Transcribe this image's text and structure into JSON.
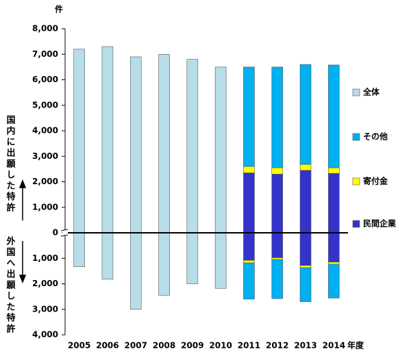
{
  "chart_data": {
    "type": "bar",
    "y_unit": "件",
    "x_unit": "年度",
    "domestic_label": "国内に出願した特許",
    "foreign_label": "外国へ出願した特許",
    "categories": [
      "2005",
      "2006",
      "2007",
      "2008",
      "2009",
      "2010",
      "2011",
      "2012",
      "2013",
      "2014"
    ],
    "series": [
      {
        "name": "全体",
        "color": "#b7dde8",
        "values": [
          7200,
          7300,
          6900,
          7000,
          6800,
          6500,
          null,
          null,
          null,
          null
        ],
        "values_out": [
          -1330,
          -1820,
          -3000,
          -2450,
          -2000,
          -2180,
          null,
          null,
          null,
          null
        ]
      },
      {
        "name": "その他",
        "color": "#00b0f0",
        "values": [
          null,
          null,
          null,
          null,
          null,
          null,
          3900,
          3950,
          3920,
          4030
        ],
        "values_out": [
          null,
          null,
          null,
          null,
          null,
          null,
          -1420,
          -1530,
          -1330,
          -1330
        ]
      },
      {
        "name": "寄付金",
        "color": "#ffff00",
        "values": [
          null,
          null,
          null,
          null,
          null,
          null,
          250,
          250,
          230,
          220
        ],
        "values_out": [
          null,
          null,
          null,
          null,
          null,
          null,
          -100,
          -70,
          -90,
          -80
        ]
      },
      {
        "name": "民間企業",
        "color": "#3333cc",
        "values": [
          null,
          null,
          null,
          null,
          null,
          null,
          2350,
          2300,
          2450,
          2330
        ],
        "values_out": [
          null,
          null,
          null,
          null,
          null,
          null,
          -1080,
          -980,
          -1280,
          -1150
        ]
      }
    ],
    "ylim": [
      -4000,
      8000
    ],
    "yticks": [
      {
        "value": 8000,
        "label": "8,000"
      },
      {
        "value": 7000,
        "label": "7,000"
      },
      {
        "value": 6000,
        "label": "6,000"
      },
      {
        "value": 5000,
        "label": "5,000"
      },
      {
        "value": 4000,
        "label": "4,000"
      },
      {
        "value": 3000,
        "label": "3,000"
      },
      {
        "value": 2000,
        "label": "2,000"
      },
      {
        "value": 1000,
        "label": "1,000"
      },
      0,
      {
        "value": -1000,
        "label": "1,000"
      },
      {
        "value": -2000,
        "label": "2,000"
      },
      {
        "value": -3000,
        "label": "3,000"
      },
      {
        "value": -4000,
        "label": "4,000"
      }
    ],
    "grid": false
  }
}
